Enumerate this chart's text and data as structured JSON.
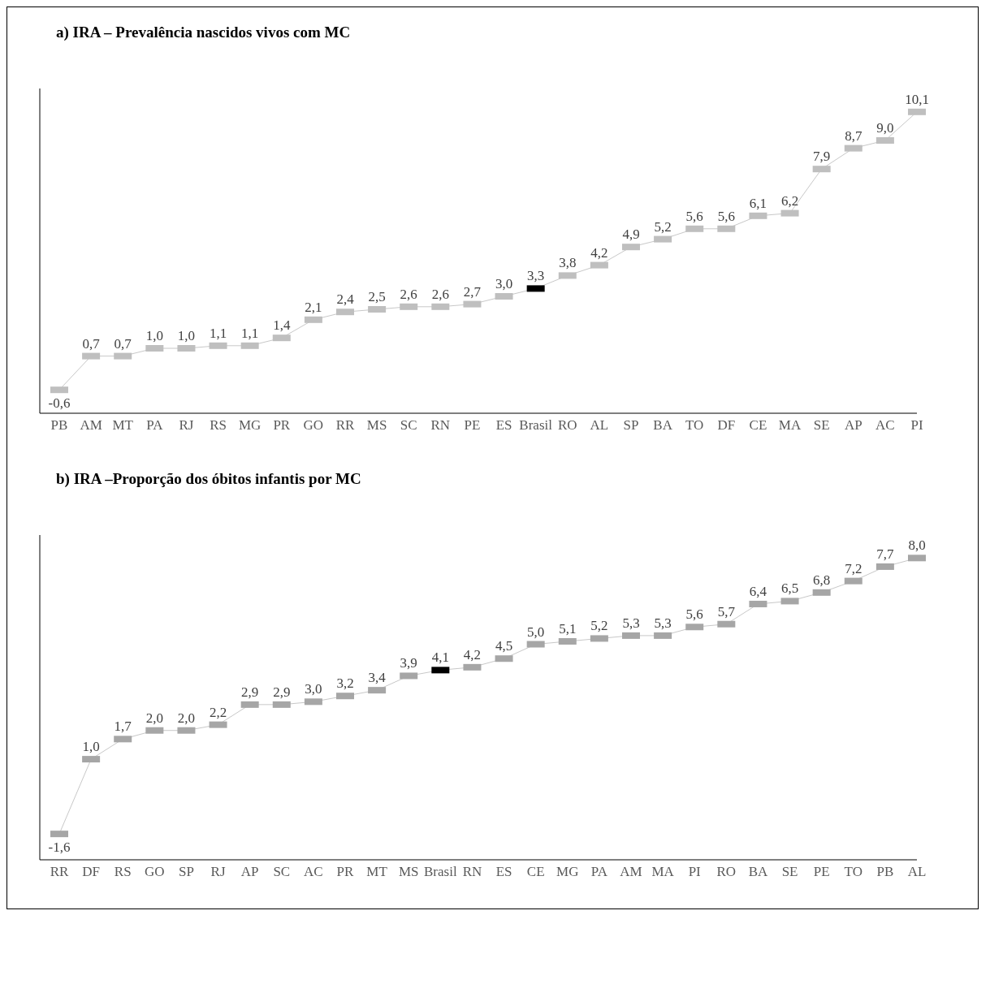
{
  "chart_data": [
    {
      "type": "line",
      "title": "a) IRA – Prevalência nascidos vivos com MC",
      "categories": [
        "PB",
        "AM",
        "MT",
        "PA",
        "RJ",
        "RS",
        "MG",
        "PR",
        "GO",
        "RR",
        "MS",
        "SC",
        "RN",
        "PE",
        "ES",
        "Brasil",
        "RO",
        "AL",
        "SP",
        "BA",
        "TO",
        "DF",
        "CE",
        "MA",
        "SE",
        "AP",
        "AC",
        "PI"
      ],
      "values": [
        -0.6,
        0.7,
        0.7,
        1.0,
        1.0,
        1.1,
        1.1,
        1.4,
        2.1,
        2.4,
        2.5,
        2.6,
        2.6,
        2.7,
        3.0,
        3.3,
        3.8,
        4.2,
        4.9,
        5.2,
        5.6,
        5.6,
        6.1,
        6.2,
        7.9,
        8.7,
        9.0,
        10.1
      ],
      "value_labels": [
        "-0,6",
        "0,7",
        "0,7",
        "1,0",
        "1,0",
        "1,1",
        "1,1",
        "1,4",
        "2,1",
        "2,4",
        "2,5",
        "2,6",
        "2,6",
        "2,7",
        "3,0",
        "3,3",
        "3,8",
        "4,2",
        "4,9",
        "5,2",
        "5,6",
        "5,6",
        "6,1",
        "6,2",
        "7,9",
        "8,7",
        "9,0",
        "10,1"
      ],
      "color": "#c8c8c8",
      "colors": [
        "#bfbfbf",
        "#bfbfbf",
        "#bfbfbf",
        "#bfbfbf",
        "#bfbfbf",
        "#bfbfbf",
        "#bfbfbf",
        "#bfbfbf",
        "#bfbfbf",
        "#bfbfbf",
        "#bfbfbf",
        "#bfbfbf",
        "#bfbfbf",
        "#bfbfbf",
        "#bfbfbf",
        "#000000",
        "#bfbfbf",
        "#bfbfbf",
        "#bfbfbf",
        "#bfbfbf",
        "#bfbfbf",
        "#bfbfbf",
        "#bfbfbf",
        "#bfbfbf",
        "#bfbfbf",
        "#bfbfbf",
        "#bfbfbf",
        "#bfbfbf"
      ],
      "marker": "square",
      "ylim": [
        -1.5,
        11
      ],
      "tick_labels": "x"
    },
    {
      "type": "line",
      "title": "b) IRA –Proporção dos óbitos infantis por MC",
      "categories": [
        "RR",
        "DF",
        "RS",
        "GO",
        "SP",
        "RJ",
        "AP",
        "SC",
        "AC",
        "PR",
        "MT",
        "MS",
        "Brasil",
        "RN",
        "ES",
        "CE",
        "MG",
        "PA",
        "AM",
        "MA",
        "PI",
        "RO",
        "BA",
        "SE",
        "PE",
        "TO",
        "PB",
        "AL"
      ],
      "values": [
        -1.6,
        1.0,
        1.7,
        2.0,
        2.0,
        2.2,
        2.9,
        2.9,
        3.0,
        3.2,
        3.4,
        3.9,
        4.1,
        4.2,
        4.5,
        5.0,
        5.1,
        5.2,
        5.3,
        5.3,
        5.6,
        5.7,
        6.4,
        6.5,
        6.8,
        7.2,
        7.7,
        8.0
      ],
      "value_labels": [
        "-1,6",
        "1,0",
        "1,7",
        "2,0",
        "2,0",
        "2,2",
        "2,9",
        "2,9",
        "3,0",
        "3,2",
        "3,4",
        "3,9",
        "4,1",
        "4,2",
        "4,5",
        "5,0",
        "5,1",
        "5,2",
        "5,3",
        "5,3",
        "5,6",
        "5,7",
        "6,4",
        "6,5",
        "6,8",
        "7,2",
        "7,7",
        "8,0"
      ],
      "color": "#c8c8c8",
      "colors": [
        "#a6a6a6",
        "#a6a6a6",
        "#a6a6a6",
        "#a6a6a6",
        "#a6a6a6",
        "#a6a6a6",
        "#a6a6a6",
        "#a6a6a6",
        "#a6a6a6",
        "#a6a6a6",
        "#a6a6a6",
        "#a6a6a6",
        "#000000",
        "#a6a6a6",
        "#a6a6a6",
        "#a6a6a6",
        "#a6a6a6",
        "#a6a6a6",
        "#a6a6a6",
        "#a6a6a6",
        "#a6a6a6",
        "#a6a6a6",
        "#a6a6a6",
        "#a6a6a6",
        "#a6a6a6",
        "#a6a6a6",
        "#a6a6a6",
        "#a6a6a6"
      ],
      "marker": "square",
      "ylim": [
        -2.5,
        8.8
      ],
      "tick_labels": "x"
    }
  ]
}
